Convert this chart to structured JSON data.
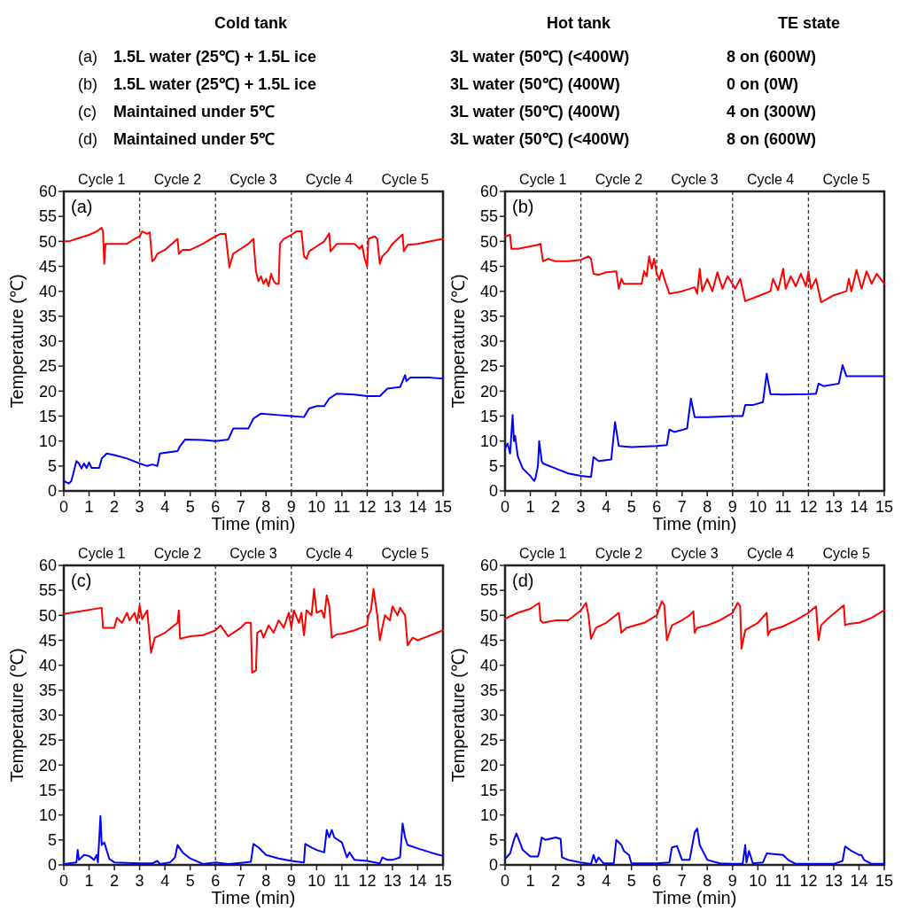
{
  "chart_data": [
    {
      "type": "other",
      "annotations": [
        "Cold tank",
        "Hot tank",
        "TE state",
        "(a)",
        "1.5L water (25℃) + 1.5L ice",
        "3L water (50℃) (<400W)",
        "8 on (600W)",
        "(b)",
        "1.5L water (25℃) + 1.5L ice",
        "3L water (50℃) (400W)",
        "0 on (0W)",
        "(c)",
        "Maintained under 5℃",
        "3L water (50℃) (400W)",
        "4 on (300W)",
        "(d)",
        "Maintained under 5℃",
        "3L water (50℃) (<400W)",
        "8 on (600W)"
      ]
    },
    {
      "type": "line",
      "title": "(a)",
      "xlabel": "Time (min)",
      "ylabel": "Temperature (℃)",
      "xlim": [
        0,
        15
      ],
      "xticks": [
        0,
        1,
        2,
        3,
        4,
        5,
        6,
        7,
        8,
        9,
        10,
        11,
        12,
        13,
        14,
        15
      ],
      "ylim": [
        0,
        60
      ],
      "yticks": [
        0,
        5,
        10,
        15,
        20,
        25,
        30,
        35,
        40,
        45,
        50,
        55,
        60
      ],
      "grid": false,
      "line_style": "solid",
      "annotations": [
        "Cycle 1",
        "Cycle 2",
        "Cycle 3",
        "Cycle 4",
        "Cycle 5"
      ],
      "ref_lines": [
        {
          "axis": "x",
          "value": 3,
          "color": "#333333",
          "line_style": "dashed"
        },
        {
          "axis": "x",
          "value": 6,
          "color": "#333333",
          "line_style": "dashed"
        },
        {
          "axis": "x",
          "value": 9,
          "color": "#333333",
          "line_style": "dashed"
        },
        {
          "axis": "x",
          "value": 12,
          "color": "#333333",
          "line_style": "dashed"
        }
      ],
      "series": [
        {
          "color": "#ff0000",
          "x": [
            0,
            0.2,
            0.5,
            1,
            1.3,
            1.5,
            1.55,
            1.6,
            1.65,
            2,
            2.5,
            2.8,
            3,
            3.1,
            3.3,
            3.4,
            3.5,
            3.6,
            3.7,
            4,
            4.5,
            4.55,
            4.7,
            5,
            5.5,
            6,
            6.2,
            6.4,
            6.5,
            6.55,
            6.7,
            7,
            7.3,
            7.5,
            7.6,
            7.7,
            7.8,
            7.9,
            8,
            8.1,
            8.2,
            8.3,
            8.4,
            8.5,
            8.55,
            8.7,
            9,
            9.2,
            9.4,
            9.5,
            9.6,
            9.7,
            10,
            10.3,
            10.5,
            10.55,
            10.8,
            11.2,
            11.5,
            11.7,
            11.8,
            11.9,
            12,
            12.05,
            12.3,
            12.4,
            12.5,
            12.6,
            12.8,
            13,
            13.4,
            13.45,
            13.6,
            14,
            14.5,
            15
          ],
          "values": [
            50,
            50,
            50.5,
            51.3,
            52,
            52.7,
            52,
            45.5,
            49.5,
            49.5,
            49.5,
            50.5,
            51,
            52,
            51.5,
            51.8,
            46,
            46.5,
            47.5,
            48.3,
            50.5,
            47.5,
            48.3,
            48.3,
            49.5,
            51,
            51.5,
            51.5,
            47,
            44.8,
            47.5,
            48.5,
            49.5,
            50.5,
            44,
            42,
            43,
            41.5,
            42.5,
            41,
            43.5,
            42,
            41.5,
            41.5,
            49.5,
            50.5,
            51.3,
            52,
            52,
            47,
            46.5,
            48,
            49,
            50,
            51.6,
            48,
            49.5,
            49.5,
            49.5,
            48.5,
            49.2,
            46.5,
            45,
            50.5,
            51,
            50.5,
            45.5,
            47,
            48,
            49.5,
            51.4,
            48,
            49.3,
            49.5,
            50,
            50.5
          ]
        },
        {
          "color": "#0000ff",
          "x": [
            0,
            0.2,
            0.3,
            0.4,
            0.5,
            0.6,
            0.7,
            0.8,
            0.9,
            1,
            1.1,
            1.4,
            1.5,
            1.7,
            2,
            2.5,
            3,
            3.3,
            3.5,
            3.7,
            3.8,
            4.5,
            4.6,
            4.8,
            5.5,
            6,
            6.5,
            6.7,
            7.3,
            7.5,
            7.8,
            8.5,
            9,
            9.5,
            9.7,
            10,
            10.3,
            10.5,
            10.8,
            11.5,
            12,
            12.5,
            12.8,
            13.3,
            13.4,
            13.5,
            13.55,
            13.7,
            14.5,
            15
          ],
          "values": [
            2,
            1.5,
            2,
            4,
            6,
            5.5,
            4.5,
            5.5,
            4.6,
            5.7,
            4.6,
            4.6,
            6.5,
            7.5,
            7.2,
            6.5,
            5.5,
            5,
            5.3,
            5,
            7.5,
            8,
            9,
            10.3,
            10.2,
            10,
            10.3,
            12.5,
            12.5,
            14.5,
            15.5,
            15.2,
            15,
            14.8,
            16.5,
            17,
            17,
            18.5,
            19.5,
            19.3,
            19,
            19,
            20.5,
            20.8,
            22,
            23.2,
            22,
            22.7,
            22.7,
            22.5
          ]
        }
      ]
    },
    {
      "type": "line",
      "title": "(b)",
      "xlabel": "Time (min)",
      "ylabel": "Temperature (℃)",
      "xlim": [
        0,
        15
      ],
      "xticks": [
        0,
        1,
        2,
        3,
        4,
        5,
        6,
        7,
        8,
        9,
        10,
        11,
        12,
        13,
        14,
        15
      ],
      "ylim": [
        0,
        60
      ],
      "yticks": [
        0,
        5,
        10,
        15,
        20,
        25,
        30,
        35,
        40,
        45,
        50,
        55,
        60
      ],
      "grid": false,
      "line_style": "solid",
      "annotations": [
        "Cycle 1",
        "Cycle 2",
        "Cycle 3",
        "Cycle 4",
        "Cycle 5"
      ],
      "ref_lines": [
        {
          "axis": "x",
          "value": 3,
          "color": "#333333",
          "line_style": "dashed"
        },
        {
          "axis": "x",
          "value": 6,
          "color": "#333333",
          "line_style": "dashed"
        },
        {
          "axis": "x",
          "value": 9,
          "color": "#333333",
          "line_style": "dashed"
        },
        {
          "axis": "x",
          "value": 12,
          "color": "#333333",
          "line_style": "dashed"
        }
      ],
      "series": [
        {
          "color": "#ff0000",
          "x": [
            0,
            0.2,
            0.25,
            0.5,
            1,
            1.3,
            1.4,
            1.5,
            1.7,
            2,
            2.5,
            3,
            3.3,
            3.4,
            3.5,
            3.7,
            4,
            4.4,
            4.5,
            4.6,
            4.7,
            5,
            5.4,
            5.5,
            5.6,
            5.7,
            5.8,
            5.9,
            6,
            6.1,
            6.2,
            6.3,
            6.5,
            7,
            7.5,
            7.6,
            7.7,
            7.8,
            8,
            8.2,
            8.4,
            8.6,
            8.8,
            9,
            9.1,
            9.3,
            9.5,
            10,
            10.5,
            10.6,
            10.8,
            11,
            11.1,
            11.3,
            11.5,
            11.7,
            11.9,
            12,
            12.1,
            12.3,
            12.5,
            13,
            13.5,
            13.6,
            13.7,
            13.9,
            14.1,
            14.3,
            14.5,
            14.7,
            15
          ],
          "values": [
            51,
            51.3,
            48.5,
            48.5,
            49,
            49.3,
            49.5,
            46,
            46.5,
            46,
            46,
            46.3,
            47,
            46.5,
            43.5,
            43.3,
            43.8,
            44,
            40.5,
            42.5,
            41.5,
            41.5,
            41.5,
            44,
            43,
            47,
            44.5,
            46.5,
            43.5,
            42.3,
            44.3,
            42.5,
            39.5,
            40,
            40.8,
            39.5,
            44.5,
            40,
            42.5,
            40,
            43.8,
            40.5,
            43,
            41.5,
            40.5,
            42.5,
            38,
            39,
            40,
            42.5,
            40.2,
            44.5,
            40.5,
            43,
            41,
            43.5,
            41,
            44,
            40.5,
            42.5,
            37.8,
            39.2,
            40,
            42.5,
            40,
            44.3,
            40.5,
            44,
            41.5,
            43.5,
            41.5
          ]
        },
        {
          "color": "#0000ff",
          "x": [
            0,
            0.1,
            0.2,
            0.3,
            0.35,
            0.4,
            0.5,
            0.7,
            1,
            1.15,
            1.2,
            1.3,
            1.35,
            1.45,
            1.5,
            2,
            2.5,
            3,
            3.4,
            3.5,
            3.7,
            4.2,
            4.35,
            4.5,
            5,
            6,
            6.4,
            6.5,
            6.7,
            7.2,
            7.35,
            7.5,
            8,
            9,
            9.4,
            9.5,
            9.8,
            10.2,
            10.35,
            10.5,
            11,
            12,
            12.3,
            12.4,
            12.6,
            13.2,
            13.35,
            13.5,
            14,
            15
          ],
          "values": [
            8.5,
            9.5,
            7.5,
            15.2,
            10,
            11,
            7,
            4.5,
            3,
            2,
            2.5,
            5,
            10,
            6,
            5.5,
            4.5,
            3.5,
            3,
            2.8,
            6.8,
            6,
            6.3,
            13.8,
            9,
            8.8,
            9,
            9.2,
            12.3,
            11.8,
            12.5,
            18.5,
            14.8,
            14.8,
            15,
            15,
            17.2,
            17.2,
            17.8,
            23.5,
            19.4,
            19.3,
            19.4,
            19.5,
            21.5,
            21,
            21.5,
            25.2,
            23,
            23,
            23
          ]
        }
      ]
    },
    {
      "type": "line",
      "title": "(c)",
      "xlabel": "Time (min)",
      "ylabel": "Temperature (℃)",
      "xlim": [
        0,
        15
      ],
      "xticks": [
        0,
        1,
        2,
        3,
        4,
        5,
        6,
        7,
        8,
        9,
        10,
        11,
        12,
        13,
        14,
        15
      ],
      "ylim": [
        0,
        60
      ],
      "yticks": [
        0,
        5,
        10,
        15,
        20,
        25,
        30,
        35,
        40,
        45,
        50,
        55,
        60
      ],
      "grid": false,
      "line_style": "solid",
      "annotations": [
        "Cycle 1",
        "Cycle 2",
        "Cycle 3",
        "Cycle 4",
        "Cycle 5"
      ],
      "ref_lines": [
        {
          "axis": "x",
          "value": 3,
          "color": "#333333",
          "line_style": "dashed"
        },
        {
          "axis": "x",
          "value": 6,
          "color": "#333333",
          "line_style": "dashed"
        },
        {
          "axis": "x",
          "value": 9,
          "color": "#333333",
          "line_style": "dashed"
        },
        {
          "axis": "x",
          "value": 12,
          "color": "#333333",
          "line_style": "dashed"
        }
      ],
      "series": [
        {
          "color": "#ff0000",
          "x": [
            0,
            1.5,
            1.55,
            2,
            2.1,
            2.3,
            2.5,
            2.6,
            2.8,
            2.9,
            3,
            3.1,
            3.3,
            3.45,
            3.6,
            4,
            4.5,
            4.55,
            4.6,
            5,
            5.5,
            6,
            6.2,
            6.5,
            7,
            7.2,
            7.4,
            7.45,
            7.6,
            7.65,
            7.8,
            7.9,
            8.1,
            8.3,
            8.5,
            8.7,
            8.9,
            9,
            9.1,
            9.3,
            9.4,
            9.5,
            9.6,
            9.8,
            9.9,
            10,
            10.2,
            10.3,
            10.4,
            10.5,
            10.6,
            10.8,
            11,
            11.5,
            12,
            12.05,
            12.15,
            12.25,
            12.4,
            12.5,
            12.6,
            12.7,
            12.9,
            13,
            13.2,
            13.3,
            13.5,
            13.6,
            13.8,
            14,
            14.5,
            15
          ],
          "values": [
            50.3,
            51.5,
            47.5,
            47.5,
            49.5,
            48.5,
            50.5,
            49,
            50.5,
            48.5,
            52,
            49.2,
            51,
            42.5,
            45.5,
            46.5,
            48.5,
            51,
            45.3,
            45.8,
            46,
            47,
            48,
            45.8,
            47.5,
            48.5,
            48.5,
            38.5,
            39,
            46.5,
            47,
            45.5,
            48,
            46.5,
            49,
            47.5,
            50.5,
            47.5,
            51,
            48.5,
            50.5,
            46,
            51,
            50,
            55.3,
            50.5,
            51,
            49.5,
            54,
            52,
            45.5,
            46.2,
            46.3,
            47,
            48,
            50,
            51,
            55.3,
            50,
            45,
            47.5,
            50,
            49,
            51.8,
            50,
            51.5,
            50,
            44,
            45.5,
            45,
            46,
            47
          ]
        },
        {
          "color": "#0000ff",
          "x": [
            0,
            0.5,
            0.55,
            0.6,
            0.8,
            1,
            1.2,
            1.3,
            1.35,
            1.45,
            1.5,
            1.6,
            1.8,
            2,
            3,
            3.5,
            3.7,
            3.8,
            4.2,
            4.4,
            4.5,
            4.7,
            5,
            5.5,
            6,
            6.5,
            7,
            7.4,
            7.5,
            7.7,
            8,
            8.5,
            9,
            9.5,
            9.55,
            9.8,
            10,
            10.3,
            10.4,
            10.5,
            10.6,
            10.7,
            11,
            11.2,
            11.3,
            11.5,
            12,
            12.5,
            12.6,
            12.8,
            13,
            13.3,
            13.4,
            13.5,
            13.6,
            14,
            14.5,
            15
          ],
          "values": [
            0.2,
            0.5,
            3,
            1,
            2,
            1.8,
            1,
            2,
            0.5,
            9.8,
            4,
            4.5,
            1.2,
            0.5,
            0.3,
            0.3,
            0.8,
            0.2,
            0.5,
            1.5,
            4,
            2.5,
            1.3,
            0.2,
            0.5,
            0.2,
            0.4,
            0.6,
            4.2,
            3.5,
            2,
            1.3,
            0.8,
            0.5,
            4.2,
            3.5,
            3,
            2.5,
            7,
            5.5,
            7,
            5.5,
            4.5,
            1.5,
            2.5,
            1,
            0.8,
            0.3,
            1.5,
            1,
            1,
            1.5,
            8.3,
            5.5,
            4,
            3.3,
            2.5,
            1.8
          ]
        }
      ]
    },
    {
      "type": "line",
      "title": "(d)",
      "xlabel": "Time (min)",
      "ylabel": "Temperature (℃)",
      "xlim": [
        0,
        15
      ],
      "xticks": [
        0,
        1,
        2,
        3,
        4,
        5,
        6,
        7,
        8,
        9,
        10,
        11,
        12,
        13,
        14,
        15
      ],
      "ylim": [
        0,
        60
      ],
      "yticks": [
        0,
        5,
        10,
        15,
        20,
        25,
        30,
        35,
        40,
        45,
        50,
        55,
        60
      ],
      "grid": false,
      "line_style": "solid",
      "annotations": [
        "Cycle 1",
        "Cycle 2",
        "Cycle 3",
        "Cycle 4",
        "Cycle 5"
      ],
      "ref_lines": [
        {
          "axis": "x",
          "value": 3,
          "color": "#333333",
          "line_style": "dashed"
        },
        {
          "axis": "x",
          "value": 6,
          "color": "#333333",
          "line_style": "dashed"
        },
        {
          "axis": "x",
          "value": 9,
          "color": "#333333",
          "line_style": "dashed"
        },
        {
          "axis": "x",
          "value": 12,
          "color": "#333333",
          "line_style": "dashed"
        }
      ],
      "series": [
        {
          "color": "#ff0000",
          "x": [
            0,
            0.5,
            1,
            1.35,
            1.4,
            1.5,
            2,
            2.5,
            3,
            3.2,
            3.3,
            3.4,
            3.6,
            4,
            4.5,
            4.6,
            4.8,
            5.5,
            6,
            6.2,
            6.3,
            6.4,
            6.6,
            7,
            7.3,
            7.45,
            7.5,
            7.6,
            8,
            8.5,
            9,
            9.2,
            9.3,
            9.35,
            9.5,
            10,
            10.35,
            10.4,
            10.5,
            11,
            11.5,
            12,
            12.3,
            12.4,
            12.5,
            12.8,
            13.4,
            13.45,
            13.6,
            14,
            14.5,
            15
          ],
          "values": [
            49.3,
            50.5,
            51.3,
            52.5,
            49,
            48.5,
            49,
            49,
            51,
            52.5,
            50,
            45.3,
            47.5,
            48.5,
            50.5,
            46.5,
            47.5,
            48.5,
            50,
            52.8,
            52,
            45,
            48,
            49,
            50,
            50.8,
            46.5,
            47.5,
            48,
            49,
            50.5,
            52.5,
            51.8,
            43.3,
            47,
            48.5,
            50.5,
            46,
            47,
            47.8,
            49,
            50.5,
            51.8,
            45,
            48,
            49.5,
            52,
            48,
            48.3,
            48.5,
            49.5,
            51
          ]
        },
        {
          "color": "#0000ff",
          "x": [
            0,
            0.2,
            0.35,
            0.45,
            0.55,
            0.7,
            1,
            1.3,
            1.35,
            1.45,
            1.6,
            2,
            2.2,
            2.25,
            2.5,
            3,
            3.4,
            3.5,
            3.6,
            3.7,
            3.9,
            4.3,
            4.4,
            4.6,
            4.7,
            4.9,
            5,
            6,
            6.5,
            6.6,
            6.8,
            7,
            7.3,
            7.5,
            7.6,
            7.7,
            8,
            8.5,
            9,
            9.4,
            9.5,
            9.55,
            9.65,
            9.8,
            10.2,
            10.35,
            11,
            11.2,
            11.5,
            12,
            13,
            13.35,
            13.45,
            13.7,
            14,
            14.1,
            14.2,
            14.5,
            15
          ],
          "values": [
            1.2,
            2.3,
            5,
            6.3,
            5,
            3,
            1.7,
            1.7,
            2.5,
            5.5,
            5,
            5.5,
            5.2,
            1.5,
            1,
            0.5,
            0.2,
            2,
            0.5,
            1.5,
            0.3,
            0.3,
            5,
            4,
            2.8,
            2,
            0.3,
            0.3,
            0.5,
            3.5,
            3.8,
            1,
            1,
            6.5,
            7.3,
            4,
            1,
            0.3,
            0.2,
            0.2,
            4,
            0.5,
            2.8,
            0.3,
            0.5,
            2.3,
            2,
            1,
            0.2,
            0.2,
            0.2,
            0.8,
            3.7,
            2.8,
            2,
            2,
            1,
            0.2,
            0.2
          ]
        }
      ]
    }
  ]
}
